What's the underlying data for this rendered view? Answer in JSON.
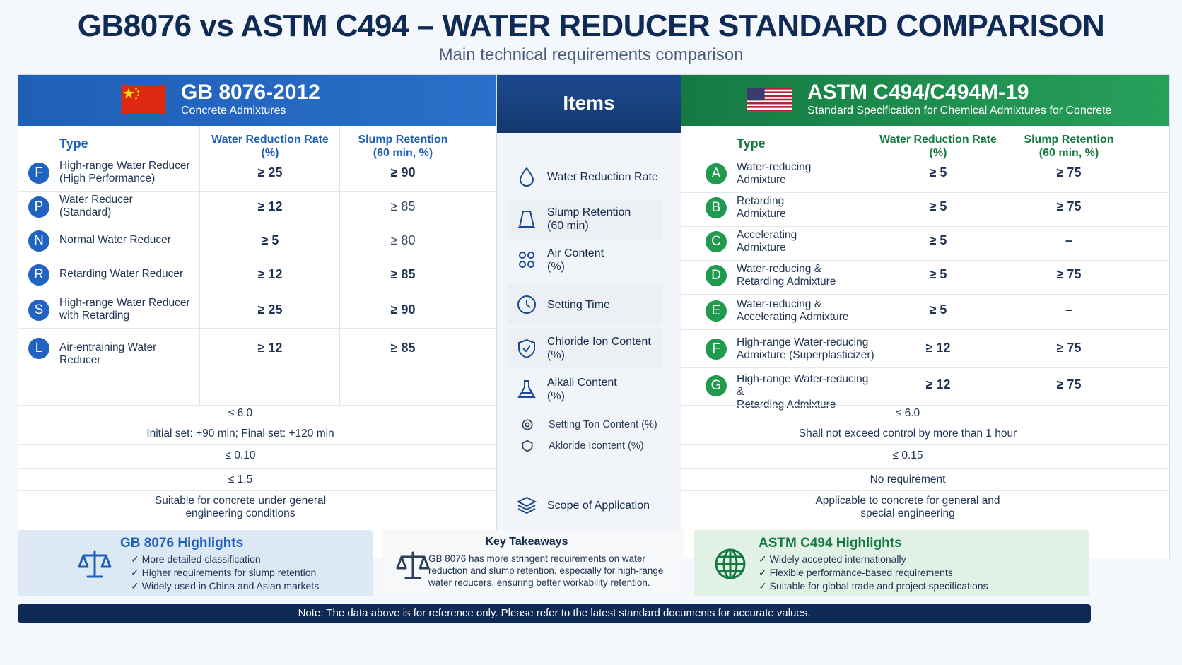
{
  "title": "GB8076 vs ASTM C494 – WATER REDUCER STANDARD COMPARISON",
  "subtitle": "Main technical requirements comparison",
  "gb": {
    "title": "GB 8076-2012",
    "subtitle": "Concrete Admixtures",
    "col_type": "Type",
    "col_wr": "Water Reduction Rate\n(%)",
    "col_sr": "Slump Retention\n(60 min, %)",
    "types": [
      {
        "badge": "F",
        "name": "High-range Water Reducer\n(High Performance)",
        "wr": "≥ 25",
        "sr": "≥ 90"
      },
      {
        "badge": "P",
        "name": "Water Reducer\n(Standard)",
        "wr": "≥ 12",
        "sr": "≥ 85"
      },
      {
        "badge": "N",
        "name": "Normal Water Reducer",
        "wr": "≥ 5",
        "sr": "≥ 80"
      },
      {
        "badge": "R",
        "name": "Retarding Water Reducer",
        "wr": "≥ 12",
        "sr": "≥ 85"
      },
      {
        "badge": "S",
        "name": "High-range Water Reducer\nwith Retarding",
        "wr": "≥ 25",
        "sr": "≥ 90"
      },
      {
        "badge": "L",
        "name": "Air-entraining Water Reducer",
        "wr": "≥ 12",
        "sr": "≥ 85"
      }
    ],
    "air_content": "≤ 6.0",
    "setting_time": "Initial set: +90 min; Final set: +120 min",
    "chloride": "≤ 0.10",
    "alkali": "≤ 1.5",
    "scope": "Suitable for concrete under general\nengineering conditions"
  },
  "items": {
    "header": "Items",
    "list": [
      {
        "icon": "water-drop-icon",
        "label": "Water Reduction Rate"
      },
      {
        "icon": "slump-cone-icon",
        "label": "Slump Retention\n(60 min)"
      },
      {
        "icon": "air-bubbles-icon",
        "label": "Air Content\n(%)"
      },
      {
        "icon": "clock-icon",
        "label": "Setting Time"
      },
      {
        "icon": "shield-icon",
        "label": "Chloride Ion Content\n(%)"
      },
      {
        "icon": "flask-icon",
        "label": "Alkali Content\n(%)"
      },
      {
        "icon": "small-settings-icon",
        "label": "Setting Ton Content (%)"
      },
      {
        "icon": "small-chloride-icon",
        "label": "Akloride Icontent (%)"
      },
      {
        "icon": "layers-icon",
        "label": "Scope of Application"
      }
    ]
  },
  "astm": {
    "title": "ASTM C494/C494M-19",
    "subtitle": "Standard Specification for Chemical Admixtures for Concrete",
    "col_type": "Type",
    "col_wr": "Water Reduction Rate\n(%)",
    "col_sr": "Slump Retention\n(60 min, %)",
    "types": [
      {
        "badge": "A",
        "name": "Water-reducing\nAdmixture",
        "wr": "≥ 5",
        "sr": "≥ 75"
      },
      {
        "badge": "B",
        "name": "Retarding\nAdmixture",
        "wr": "≥ 5",
        "sr": "≥ 75"
      },
      {
        "badge": "C",
        "name": "Accelerating\nAdmixture",
        "wr": "≥ 5",
        "sr": "–"
      },
      {
        "badge": "D",
        "name": "Water-reducing &\nRetarding Admixture",
        "wr": "≥ 5",
        "sr": "≥ 75"
      },
      {
        "badge": "E",
        "name": "Water-reducing &\nAccelerating Admixture",
        "wr": "≥ 5",
        "sr": "–"
      },
      {
        "badge": "F",
        "name": "High-range Water-reducing\nAdmixture (Superplasticizer)",
        "wr": "≥ 12",
        "sr": "≥ 75"
      },
      {
        "badge": "G",
        "name": "High-range Water-reducing &\nRetarding Admixture",
        "wr": "≥ 12",
        "sr": "≥ 75"
      }
    ],
    "air_content": "≤ 6.0",
    "setting_time": "Shall not exceed control by more than 1 hour",
    "chloride": "≤ 0.15",
    "alkali": "No requirement",
    "scope": "Applicable to concrete for general and\nspecial engineering"
  },
  "cards": {
    "gb": {
      "title": "GB 8076 Highlights",
      "items": [
        "✓ More detailed classification",
        "✓ Higher requirements for slump retention",
        "✓ Widely used in China and Asian markets"
      ]
    },
    "key": {
      "title": "Key Takeaways",
      "text": "GB 8076 has more stringent requirements on water\nreduction and slump retention, especially for high-range\nwater reducers, ensuring better workability retention."
    },
    "astm": {
      "title": "ASTM C494 Highlights",
      "items": [
        "✓ Widely accepted internationally",
        "✓ Flexible performance-based requirements",
        "✓ Suitable for global trade and project specifications"
      ]
    }
  },
  "footer": "Note: The data above is for reference only. Please refer to the latest standard documents for accurate values.",
  "colors": {
    "gb_blue": "#1f5fb8",
    "astm_green": "#157a42",
    "navy": "#0f2a55"
  }
}
